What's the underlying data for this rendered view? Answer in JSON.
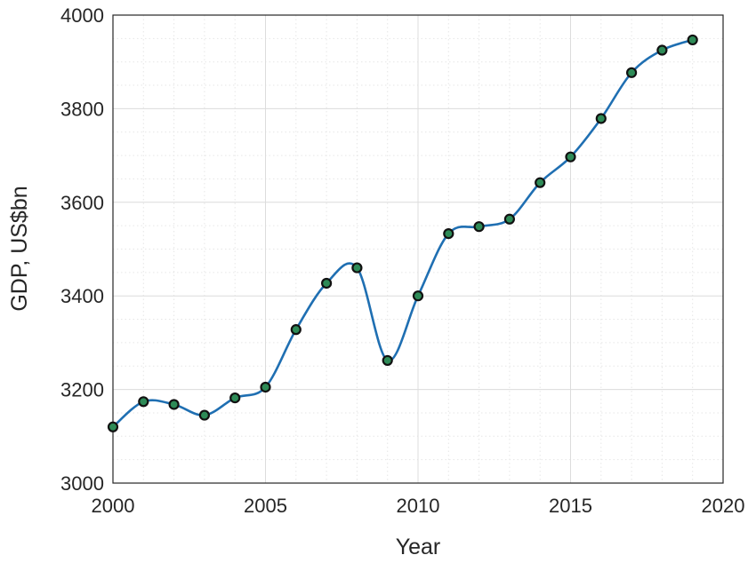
{
  "chart_data": {
    "type": "line",
    "xlabel": "Year",
    "ylabel": "GDP, US$bn",
    "xlim": [
      2000,
      2020
    ],
    "ylim": [
      3000,
      4000
    ],
    "xticks": [
      2000,
      2005,
      2010,
      2015,
      2020
    ],
    "yticks": [
      3000,
      3200,
      3400,
      3600,
      3800,
      4000
    ],
    "xtick_labels": [
      "2000",
      "2005",
      "2010",
      "2015",
      "2020"
    ],
    "ytick_labels": [
      "3000",
      "3200",
      "3400",
      "3600",
      "3800",
      "4000"
    ],
    "grid": true,
    "minor_grid": true,
    "smoothed_line": true,
    "series": [
      {
        "x": [
          2000,
          2001,
          2002,
          2003,
          2004,
          2005,
          2006,
          2007,
          2008,
          2009,
          2010,
          2011,
          2012,
          2013,
          2014,
          2015,
          2016,
          2017,
          2018,
          2019
        ],
        "values": [
          3120,
          3174,
          3168,
          3145,
          3182,
          3205,
          3328,
          3427,
          3460,
          3262,
          3400,
          3533,
          3548,
          3564,
          3642,
          3697,
          3779,
          3877,
          3925,
          3947
        ],
        "line_color": "#1f6fb2",
        "marker_fill": "#2e8b57",
        "marker_edge": "#111111"
      }
    ]
  }
}
